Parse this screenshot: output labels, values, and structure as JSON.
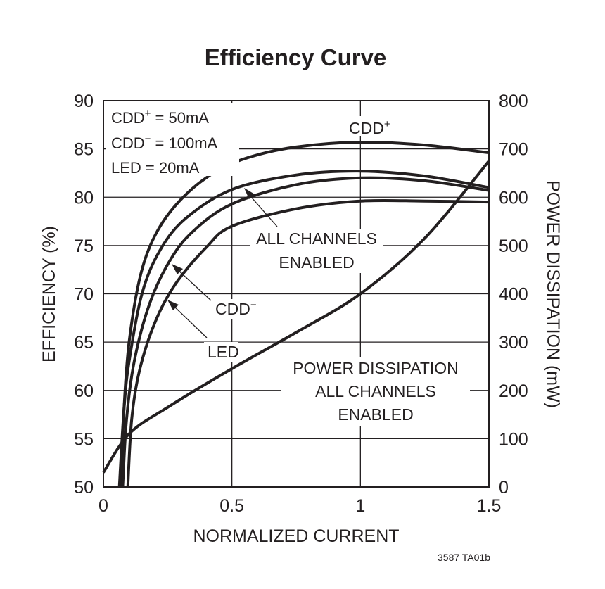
{
  "chart_data": {
    "type": "line",
    "title": "Efficiency Curve",
    "xlabel": "NORMALIZED CURRENT",
    "ylabel": "EFFICIENCY (%)",
    "y2label": "POWER DISSIPATION (mW)",
    "xlim": [
      0,
      1.5
    ],
    "ylim": [
      50,
      90
    ],
    "y2lim": [
      0,
      800
    ],
    "xticks": [
      "0",
      "0.5",
      "1",
      "1.5"
    ],
    "xtick_values": [
      0,
      0.5,
      1,
      1.5
    ],
    "yticks": [
      "50",
      "55",
      "60",
      "65",
      "70",
      "75",
      "80",
      "85",
      "90"
    ],
    "ytick_values": [
      50,
      55,
      60,
      65,
      70,
      75,
      80,
      85,
      90
    ],
    "y2ticks": [
      "0",
      "100",
      "200",
      "300",
      "400",
      "500",
      "600",
      "700",
      "800"
    ],
    "y2tick_values": [
      0,
      100,
      200,
      300,
      400,
      500,
      600,
      700,
      800
    ],
    "grid": true,
    "conditions": [
      "CDD",
      "+",
      " = 50mA",
      "CDD",
      "−",
      " = 100mA",
      "LED = 20mA"
    ],
    "annotations": {
      "cdd_plus": [
        "CDD",
        "+"
      ],
      "all_channels": [
        "ALL CHANNELS",
        "ENABLED"
      ],
      "cdd_minus": [
        "CDD",
        "−"
      ],
      "led": "LED",
      "power": [
        "POWER DISSIPATION",
        "ALL CHANNELS",
        "ENABLED"
      ]
    },
    "series": [
      {
        "name": "CDD+",
        "axis": "left",
        "points": [
          [
            0.068,
            50
          ],
          [
            0.08,
            58
          ],
          [
            0.1,
            65
          ],
          [
            0.145,
            72
          ],
          [
            0.21,
            76.5
          ],
          [
            0.31,
            80
          ],
          [
            0.44,
            82.7
          ],
          [
            0.575,
            84.2
          ],
          [
            0.75,
            85.2
          ],
          [
            1.0,
            85.7
          ],
          [
            1.25,
            85.4
          ],
          [
            1.5,
            84.6
          ]
        ]
      },
      {
        "name": "ALL CHANNELS ENABLED",
        "axis": "left",
        "points": [
          [
            0.062,
            50
          ],
          [
            0.08,
            58
          ],
          [
            0.1,
            63
          ],
          [
            0.15,
            70
          ],
          [
            0.22,
            74.5
          ],
          [
            0.32,
            77.8
          ],
          [
            0.5,
            80.8
          ],
          [
            0.75,
            82.3
          ],
          [
            1.0,
            82.7
          ],
          [
            1.25,
            82.2
          ],
          [
            1.5,
            81.0
          ]
        ]
      },
      {
        "name": "CDD−",
        "axis": "left",
        "points": [
          [
            0.075,
            50
          ],
          [
            0.09,
            57
          ],
          [
            0.12,
            63
          ],
          [
            0.18,
            69
          ],
          [
            0.26,
            73.5
          ],
          [
            0.35,
            76.5
          ],
          [
            0.5,
            79.3
          ],
          [
            0.75,
            81.3
          ],
          [
            1.0,
            82.0
          ],
          [
            1.25,
            81.7
          ],
          [
            1.5,
            80.7
          ]
        ]
      },
      {
        "name": "LED",
        "axis": "left",
        "points": [
          [
            0.095,
            50
          ],
          [
            0.11,
            57
          ],
          [
            0.14,
            62
          ],
          [
            0.2,
            67
          ],
          [
            0.28,
            71
          ],
          [
            0.4,
            74.8
          ],
          [
            0.5,
            77
          ],
          [
            0.75,
            78.8
          ],
          [
            1.0,
            79.6
          ],
          [
            1.25,
            79.6
          ],
          [
            1.5,
            79.5
          ]
        ]
      },
      {
        "name": "POWER DISSIPATION ALL CHANNELS ENABLED",
        "axis": "right",
        "points": [
          [
            0,
            30
          ],
          [
            0.1,
            110
          ],
          [
            0.25,
            165
          ],
          [
            0.5,
            245
          ],
          [
            0.75,
            320
          ],
          [
            1.0,
            400
          ],
          [
            1.25,
            515
          ],
          [
            1.5,
            675
          ]
        ]
      }
    ],
    "footnote": "3587 TA01b"
  }
}
